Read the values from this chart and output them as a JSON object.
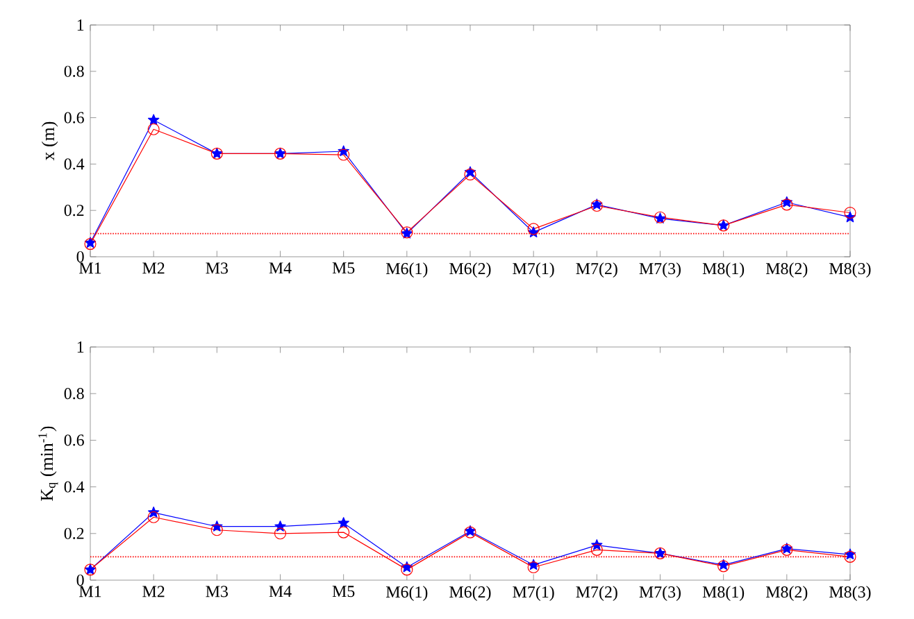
{
  "chart_data": [
    {
      "type": "line",
      "ylabel": "x (m)",
      "categories": [
        "M1",
        "M2",
        "M3",
        "M4",
        "M5",
        "M6(1)",
        "M6(2)",
        "M7(1)",
        "M7(2)",
        "M7(3)",
        "M8(1)",
        "M8(2)",
        "M8(3)"
      ],
      "ylim": [
        0,
        1
      ],
      "yticks": [
        0,
        0.2,
        0.4,
        0.6,
        0.8,
        1
      ],
      "series": [
        {
          "color": "#0000ff",
          "marker": "star",
          "values": [
            0.06,
            0.59,
            0.445,
            0.445,
            0.455,
            0.1,
            0.365,
            0.105,
            0.225,
            0.165,
            0.135,
            0.235,
            0.17
          ]
        },
        {
          "color": "#ff0000",
          "marker": "circle",
          "values": [
            0.055,
            0.55,
            0.445,
            0.445,
            0.44,
            0.105,
            0.355,
            0.12,
            0.22,
            0.17,
            0.135,
            0.225,
            0.19
          ]
        }
      ],
      "ref_lines": [
        {
          "axis": "y",
          "value": 0.1,
          "color": "#ff0000",
          "line_style": "dotted"
        }
      ]
    },
    {
      "type": "line",
      "ylabel": "K$_{q}$ (min$^{-1}$)",
      "categories": [
        "M1",
        "M2",
        "M3",
        "M4",
        "M5",
        "M6(1)",
        "M6(2)",
        "M7(1)",
        "M7(2)",
        "M7(3)",
        "M8(1)",
        "M8(2)",
        "M8(3)"
      ],
      "ylim": [
        0,
        1
      ],
      "yticks": [
        0,
        0.2,
        0.4,
        0.6,
        0.8,
        1
      ],
      "series": [
        {
          "color": "#0000ff",
          "marker": "star",
          "values": [
            0.045,
            0.29,
            0.23,
            0.23,
            0.245,
            0.055,
            0.21,
            0.065,
            0.15,
            0.115,
            0.065,
            0.135,
            0.11
          ]
        },
        {
          "color": "#ff0000",
          "marker": "circle",
          "values": [
            0.045,
            0.27,
            0.215,
            0.2,
            0.205,
            0.045,
            0.205,
            0.055,
            0.13,
            0.115,
            0.06,
            0.13,
            0.1
          ]
        }
      ],
      "ref_lines": [
        {
          "axis": "y",
          "value": 0.1,
          "color": "#ff0000",
          "line_style": "dotted"
        }
      ]
    }
  ]
}
